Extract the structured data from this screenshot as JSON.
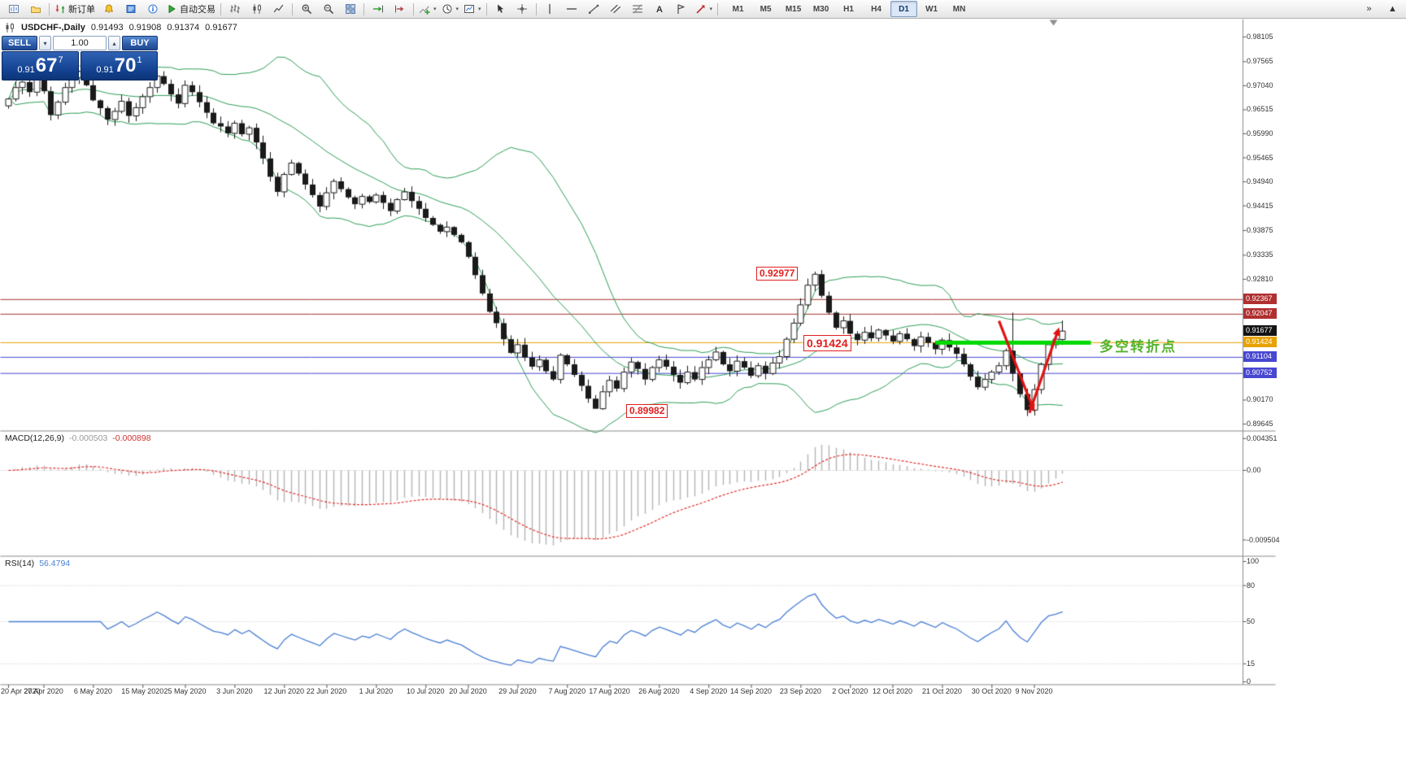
{
  "toolbar": {
    "items": [
      {
        "type": "icon",
        "name": "new-chart-icon",
        "icon": "newchart"
      },
      {
        "type": "icon",
        "name": "chart-profiles-icon",
        "icon": "profiles"
      },
      {
        "type": "sep"
      },
      {
        "type": "button",
        "name": "new-order-button",
        "icon": "order",
        "label": "新订单"
      },
      {
        "type": "icon",
        "name": "alert-icon",
        "icon": "alert"
      },
      {
        "type": "icon",
        "name": "news-icon",
        "icon": "news"
      },
      {
        "type": "icon",
        "name": "help-icon",
        "icon": "info"
      },
      {
        "type": "button",
        "name": "autotrading-button",
        "icon": "play",
        "label": "自动交易"
      },
      {
        "type": "sep"
      },
      {
        "type": "icon",
        "name": "bar-chart-icon",
        "icon": "bars"
      },
      {
        "type": "icon",
        "name": "candlestick-chart-icon",
        "icon": "candles"
      },
      {
        "type": "icon",
        "name": "line-chart-icon",
        "icon": "linechart"
      },
      {
        "type": "sep"
      },
      {
        "type": "icon",
        "name": "zoom-in-icon",
        "icon": "zoomin"
      },
      {
        "type": "icon",
        "name": "zoom-out-icon",
        "icon": "zoomout"
      },
      {
        "type": "icon",
        "name": "tile-windows-icon",
        "icon": "tile"
      },
      {
        "type": "sep"
      },
      {
        "type": "icon",
        "name": "auto-scroll-icon",
        "icon": "autoscroll"
      },
      {
        "type": "icon",
        "name": "chart-shift-icon",
        "icon": "shift"
      },
      {
        "type": "sep"
      },
      {
        "type": "icon",
        "name": "indicators-icon",
        "icon": "indicators",
        "caret": true
      },
      {
        "type": "icon",
        "name": "periods-icon",
        "icon": "clock",
        "caret": true
      },
      {
        "type": "icon",
        "name": "templates-icon",
        "icon": "template",
        "caret": true
      },
      {
        "type": "sep"
      },
      {
        "type": "icon",
        "name": "cursor-icon",
        "icon": "cursor"
      },
      {
        "type": "icon",
        "name": "crosshair-icon",
        "icon": "crosshair"
      },
      {
        "type": "sep"
      },
      {
        "type": "icon",
        "name": "vertical-line-icon",
        "icon": "vline"
      },
      {
        "type": "icon",
        "name": "horizontal-line-icon",
        "icon": "hline"
      },
      {
        "type": "icon",
        "name": "trendline-icon",
        "icon": "trend"
      },
      {
        "type": "icon",
        "name": "equidistant-channel-icon",
        "icon": "channel"
      },
      {
        "type": "icon",
        "name": "fibonacci-icon",
        "icon": "fibo"
      },
      {
        "type": "icon",
        "name": "text-icon",
        "icon": "textA"
      },
      {
        "type": "icon",
        "name": "text-label-icon",
        "icon": "label"
      },
      {
        "type": "icon",
        "name": "arrows-objects-icon",
        "icon": "shapes",
        "caret": true
      },
      {
        "type": "sep"
      }
    ],
    "timeframes": [
      "M1",
      "M5",
      "M15",
      "M30",
      "H1",
      "H4",
      "D1",
      "W1",
      "MN"
    ],
    "active_timeframe": "D1",
    "overflow_icon": "»",
    "scroll_up_icon": "▲"
  },
  "chart": {
    "symbol_info": "USDCHF-,Daily",
    "ohlc": {
      "open": "0.91493",
      "high": "0.91908",
      "low": "0.91374",
      "close": "0.91677"
    },
    "one_click": {
      "sell_label": "SELL",
      "buy_label": "BUY",
      "volume": "1.00",
      "spin_down": "▾",
      "spin_up": "▴",
      "sell_price_small": "0.91",
      "sell_price_big": "67",
      "sell_price_sup": "7",
      "buy_price_small": "0.91",
      "buy_price_big": "70",
      "buy_price_sup": "1"
    },
    "axis_ticks": [
      "0.98105",
      "0.97565",
      "0.97040",
      "0.96515",
      "0.95990",
      "0.95465",
      "0.94940",
      "0.94415",
      "0.93875",
      "0.93335",
      "0.92810",
      "0.90170",
      "0.89645"
    ],
    "price_boxes": [
      {
        "label": "0.92367",
        "price": 0.92367,
        "color": "#b03030",
        "name": "resistance-price-badge"
      },
      {
        "label": "0.92047",
        "price": 0.92047,
        "color": "#b03030",
        "name": "resistance-price-badge"
      },
      {
        "label": "0.91677",
        "price": 0.91677,
        "color": "#141414",
        "name": "current-price-badge"
      },
      {
        "label": "0.91424",
        "price": 0.91424,
        "color": "#e8a200",
        "name": "pivot-price-badge"
      },
      {
        "label": "0.91104",
        "price": 0.91104,
        "color": "#4747d1",
        "name": "support-price-badge"
      },
      {
        "label": "0.90752",
        "price": 0.90752,
        "color": "#4747d1",
        "name": "support-price-badge"
      }
    ],
    "level_lines": [
      {
        "price": 0.92367,
        "color": "#a83232"
      },
      {
        "price": 0.92047,
        "color": "#a83232"
      },
      {
        "price": 0.91424,
        "color": "#e8a200"
      },
      {
        "price": 0.91104,
        "color": "#4747d1"
      },
      {
        "price": 0.90752,
        "color": "#4747d1"
      }
    ],
    "callouts": [
      {
        "text": "0.92977"
      },
      {
        "text": "0.91424"
      },
      {
        "text": "0.89982"
      }
    ],
    "annotations": {
      "turning_point_text": "多空转折点",
      "support_line": {
        "price": 0.91424,
        "from_i": 131,
        "to_i": 153,
        "color": "#00d900",
        "width": 5
      },
      "arrows": [
        {
          "dir": "down",
          "from": {
            "i": 140,
            "p": 0.919
          },
          "to": {
            "i": 145,
            "p": 0.8991
          }
        },
        {
          "dir": "up",
          "from": {
            "i": 144.3,
            "p": 0.8989
          },
          "to": {
            "i": 148.5,
            "p": 0.9176
          }
        }
      ],
      "arrow_color": "#e01212"
    },
    "date_labels": [
      {
        "label": "20 Apr 2020",
        "i": 0
      },
      {
        "label": "27 Apr 2020",
        "i": 5
      },
      {
        "label": "6 May 2020",
        "i": 12
      },
      {
        "label": "15 May 2020",
        "i": 19
      },
      {
        "label": "25 May 2020",
        "i": 25
      },
      {
        "label": "3 Jun 2020",
        "i": 32
      },
      {
        "label": "12 Jun 2020",
        "i": 39
      },
      {
        "label": "22 Jun 2020",
        "i": 45
      },
      {
        "label": "1 Jul 2020",
        "i": 52
      },
      {
        "label": "10 Jul 2020",
        "i": 59
      },
      {
        "label": "20 Jul 2020",
        "i": 65
      },
      {
        "label": "29 Jul 2020",
        "i": 72
      },
      {
        "label": "7 Aug 2020",
        "i": 79
      },
      {
        "label": "17 Aug 2020",
        "i": 85
      },
      {
        "label": "26 Aug 2020",
        "i": 92
      },
      {
        "label": "4 Sep 2020",
        "i": 99
      },
      {
        "label": "14 Sep 2020",
        "i": 105
      },
      {
        "label": "23 Sep 2020",
        "i": 112
      },
      {
        "label": "2 Oct 2020",
        "i": 119
      },
      {
        "label": "12 Oct 2020",
        "i": 125
      },
      {
        "label": "21 Oct 2020",
        "i": 132
      },
      {
        "label": "30 Oct 2020",
        "i": 139
      },
      {
        "label": "9 Nov 2020",
        "i": 145
      }
    ]
  },
  "macd": {
    "name": "MACD(12,26,9)",
    "value": "-0.000503",
    "signal_value": "-0.000898",
    "axis_labels": [
      "0.004351",
      "0.00",
      "-0.009504"
    ]
  },
  "rsi": {
    "name": "RSI(14)",
    "value": "56.4794",
    "axis_labels": [
      "100",
      "80",
      "50",
      "15",
      "0"
    ],
    "levels": [
      80,
      50,
      15
    ]
  },
  "chart_data": {
    "type": "candlestick",
    "symbol": "USDCHF",
    "timeframe": "Daily",
    "title": "USDCHF-,Daily",
    "first_open": 0.966,
    "closes": [
      0.9675,
      0.97,
      0.9712,
      0.969,
      0.9718,
      0.9692,
      0.964,
      0.9668,
      0.97,
      0.9722,
      0.9735,
      0.9705,
      0.9672,
      0.9655,
      0.963,
      0.9648,
      0.967,
      0.9638,
      0.9656,
      0.968,
      0.97,
      0.9725,
      0.9708,
      0.9685,
      0.9665,
      0.9705,
      0.969,
      0.9668,
      0.9645,
      0.9622,
      0.9615,
      0.96,
      0.9622,
      0.9598,
      0.9612,
      0.958,
      0.9545,
      0.9505,
      0.9472,
      0.951,
      0.9535,
      0.9512,
      0.9488,
      0.9465,
      0.944,
      0.947,
      0.9495,
      0.9478,
      0.946,
      0.9445,
      0.9462,
      0.945,
      0.9465,
      0.9448,
      0.943,
      0.9455,
      0.9472,
      0.9452,
      0.9435,
      0.9415,
      0.94,
      0.9385,
      0.9395,
      0.9378,
      0.9362,
      0.933,
      0.929,
      0.925,
      0.921,
      0.9185,
      0.915,
      0.912,
      0.9138,
      0.911,
      0.909,
      0.9105,
      0.908,
      0.9062,
      0.9115,
      0.9095,
      0.9072,
      0.9048,
      0.902,
      0.8998,
      0.9035,
      0.906,
      0.9042,
      0.9078,
      0.91,
      0.9085,
      0.9062,
      0.9088,
      0.9105,
      0.909,
      0.9072,
      0.9055,
      0.9078,
      0.9062,
      0.9088,
      0.9105,
      0.9122,
      0.9095,
      0.908,
      0.9102,
      0.9088,
      0.907,
      0.9092,
      0.9075,
      0.9098,
      0.9112,
      0.915,
      0.9185,
      0.9225,
      0.9268,
      0.9292,
      0.9245,
      0.9208,
      0.9175,
      0.919,
      0.9162,
      0.9148,
      0.9165,
      0.9152,
      0.917,
      0.9158,
      0.9145,
      0.9162,
      0.915,
      0.9135,
      0.9155,
      0.9142,
      0.9128,
      0.9148,
      0.9132,
      0.9118,
      0.9095,
      0.9068,
      0.9045,
      0.9062,
      0.9078,
      0.9092,
      0.9125,
      0.9075,
      0.903,
      0.8995,
      0.904,
      0.9095,
      0.9138,
      0.915,
      0.91677
    ],
    "overrides": {
      "83": [
        0.902,
        0.9028,
        0.89982,
        0.8998
      ],
      "114": [
        0.9268,
        0.92977,
        0.9255,
        0.9292
      ],
      "142": [
        0.9125,
        0.9208,
        0.9058,
        0.9075
      ],
      "144": [
        0.903,
        0.9042,
        0.8982,
        0.8995
      ],
      "145": [
        0.8995,
        0.9052,
        0.8983,
        0.904
      ],
      "149": [
        0.91493,
        0.91908,
        0.91374,
        0.91677
      ]
    },
    "indicators": {
      "bollinger_period": 20,
      "bollinger_deviation": 2,
      "macd": [
        12,
        26,
        9
      ],
      "rsi_period": 14
    },
    "price_axis_range": [
      0.8952,
      0.98407
    ],
    "macd_axis_range": [
      -0.009504,
      0.004351
    ],
    "rsi_axis_range": [
      0,
      100
    ]
  }
}
